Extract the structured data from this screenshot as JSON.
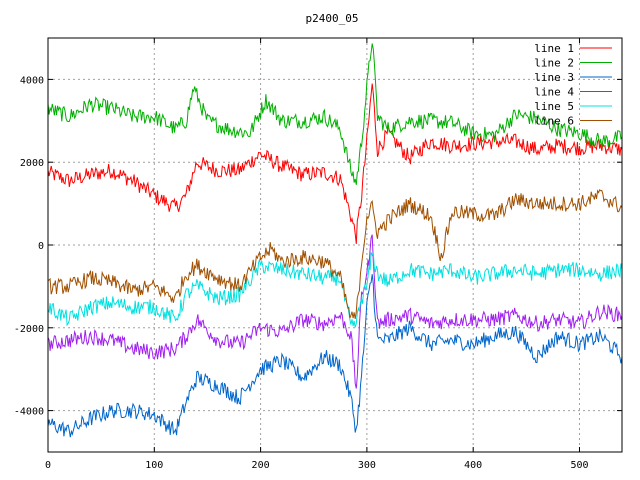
{
  "chart_data": {
    "type": "line",
    "title": "p2400_05",
    "xlabel": "",
    "ylabel": "",
    "xlim": [
      0,
      540
    ],
    "ylim": [
      -5000,
      5000
    ],
    "x_ticks": [
      0,
      100,
      200,
      300,
      400,
      500
    ],
    "y_ticks": [
      -4000,
      -2000,
      0,
      2000,
      4000
    ],
    "grid": true,
    "legend_position": "top-right",
    "series": [
      {
        "name": "line 1",
        "color": "#ff0000",
        "x": [
          0,
          20,
          40,
          60,
          80,
          100,
          120,
          130,
          140,
          160,
          180,
          200,
          220,
          240,
          260,
          275,
          285,
          290,
          295,
          300,
          305,
          310,
          320,
          340,
          360,
          380,
          400,
          420,
          440,
          460,
          480,
          500,
          520,
          540
        ],
        "y": [
          1750,
          1550,
          1700,
          1800,
          1550,
          1200,
          900,
          1200,
          2000,
          1800,
          1800,
          2200,
          1900,
          1700,
          1750,
          1600,
          700,
          200,
          1200,
          2500,
          3900,
          2300,
          2700,
          2100,
          2500,
          2400,
          2450,
          2500,
          2500,
          2300,
          2400,
          2350,
          2400,
          2300
        ]
      },
      {
        "name": "line 2",
        "color": "#00b000",
        "x": [
          0,
          20,
          40,
          60,
          80,
          100,
          120,
          130,
          137,
          150,
          170,
          190,
          205,
          220,
          240,
          260,
          275,
          285,
          290,
          295,
          300,
          305,
          310,
          320,
          340,
          360,
          380,
          400,
          420,
          440,
          460,
          480,
          500,
          520,
          540
        ],
        "y": [
          3300,
          3100,
          3400,
          3300,
          3100,
          3100,
          2800,
          3000,
          3800,
          3000,
          2800,
          2700,
          3500,
          3000,
          3000,
          3100,
          2800,
          1800,
          1500,
          2500,
          3800,
          5000,
          3100,
          2800,
          3000,
          3000,
          2950,
          2700,
          2650,
          3150,
          3050,
          2800,
          2700,
          2500,
          2600
        ]
      },
      {
        "name": "line 3",
        "color": "#0066cc",
        "x": [
          0,
          20,
          40,
          60,
          80,
          100,
          120,
          130,
          140,
          160,
          180,
          200,
          220,
          240,
          260,
          275,
          285,
          290,
          295,
          300,
          305,
          310,
          320,
          340,
          360,
          380,
          400,
          420,
          440,
          460,
          480,
          500,
          520,
          540
        ],
        "y": [
          -4300,
          -4500,
          -4200,
          -4000,
          -4000,
          -4100,
          -4500,
          -3800,
          -3200,
          -3400,
          -3700,
          -3000,
          -2800,
          -3200,
          -2700,
          -2900,
          -3700,
          -4500,
          -3200,
          -1500,
          -700,
          -2300,
          -2300,
          -2000,
          -2400,
          -2300,
          -2400,
          -2200,
          -2100,
          -2700,
          -2200,
          -2400,
          -2200,
          -2700
        ]
      },
      {
        "name": "line 4",
        "color": "#a020f0",
        "x": [
          0,
          20,
          40,
          60,
          80,
          100,
          120,
          130,
          140,
          160,
          180,
          200,
          220,
          240,
          260,
          275,
          285,
          290,
          295,
          300,
          305,
          310,
          320,
          340,
          360,
          380,
          400,
          420,
          440,
          460,
          480,
          500,
          520,
          540
        ],
        "y": [
          -2400,
          -2300,
          -2200,
          -2300,
          -2500,
          -2600,
          -2500,
          -2200,
          -1800,
          -2300,
          -2400,
          -2000,
          -2100,
          -1800,
          -1900,
          -1700,
          -2200,
          -3500,
          -1200,
          -700,
          200,
          -1900,
          -1800,
          -1700,
          -1900,
          -1800,
          -1800,
          -1800,
          -1700,
          -1900,
          -1800,
          -1900,
          -1600,
          -1700
        ]
      },
      {
        "name": "line 5",
        "color": "#00e0e0",
        "x": [
          0,
          20,
          40,
          60,
          80,
          100,
          120,
          130,
          140,
          160,
          180,
          200,
          220,
          240,
          260,
          275,
          285,
          290,
          295,
          300,
          305,
          310,
          320,
          340,
          360,
          380,
          400,
          420,
          440,
          460,
          480,
          500,
          520,
          540
        ],
        "y": [
          -1500,
          -1800,
          -1500,
          -1400,
          -1500,
          -1500,
          -1800,
          -1200,
          -1000,
          -1300,
          -1200,
          -500,
          -600,
          -700,
          -800,
          -800,
          -2000,
          -1900,
          -1300,
          -1000,
          -200,
          -700,
          -900,
          -600,
          -700,
          -600,
          -800,
          -700,
          -600,
          -700,
          -600,
          -600,
          -700,
          -600
        ]
      },
      {
        "name": "line 6",
        "color": "#a05000",
        "x": [
          0,
          20,
          40,
          60,
          80,
          100,
          120,
          130,
          140,
          160,
          180,
          200,
          210,
          220,
          240,
          260,
          275,
          285,
          290,
          295,
          300,
          305,
          310,
          320,
          340,
          360,
          370,
          380,
          400,
          420,
          440,
          460,
          480,
          500,
          520,
          540
        ],
        "y": [
          -1000,
          -1000,
          -800,
          -900,
          -1100,
          -1000,
          -1300,
          -700,
          -500,
          -800,
          -1000,
          -300,
          -100,
          -400,
          -300,
          -400,
          -800,
          -1800,
          -1700,
          -400,
          700,
          900,
          300,
          600,
          1000,
          700,
          -300,
          800,
          750,
          700,
          1100,
          1000,
          1000,
          1000,
          1200,
          900
        ]
      }
    ]
  }
}
